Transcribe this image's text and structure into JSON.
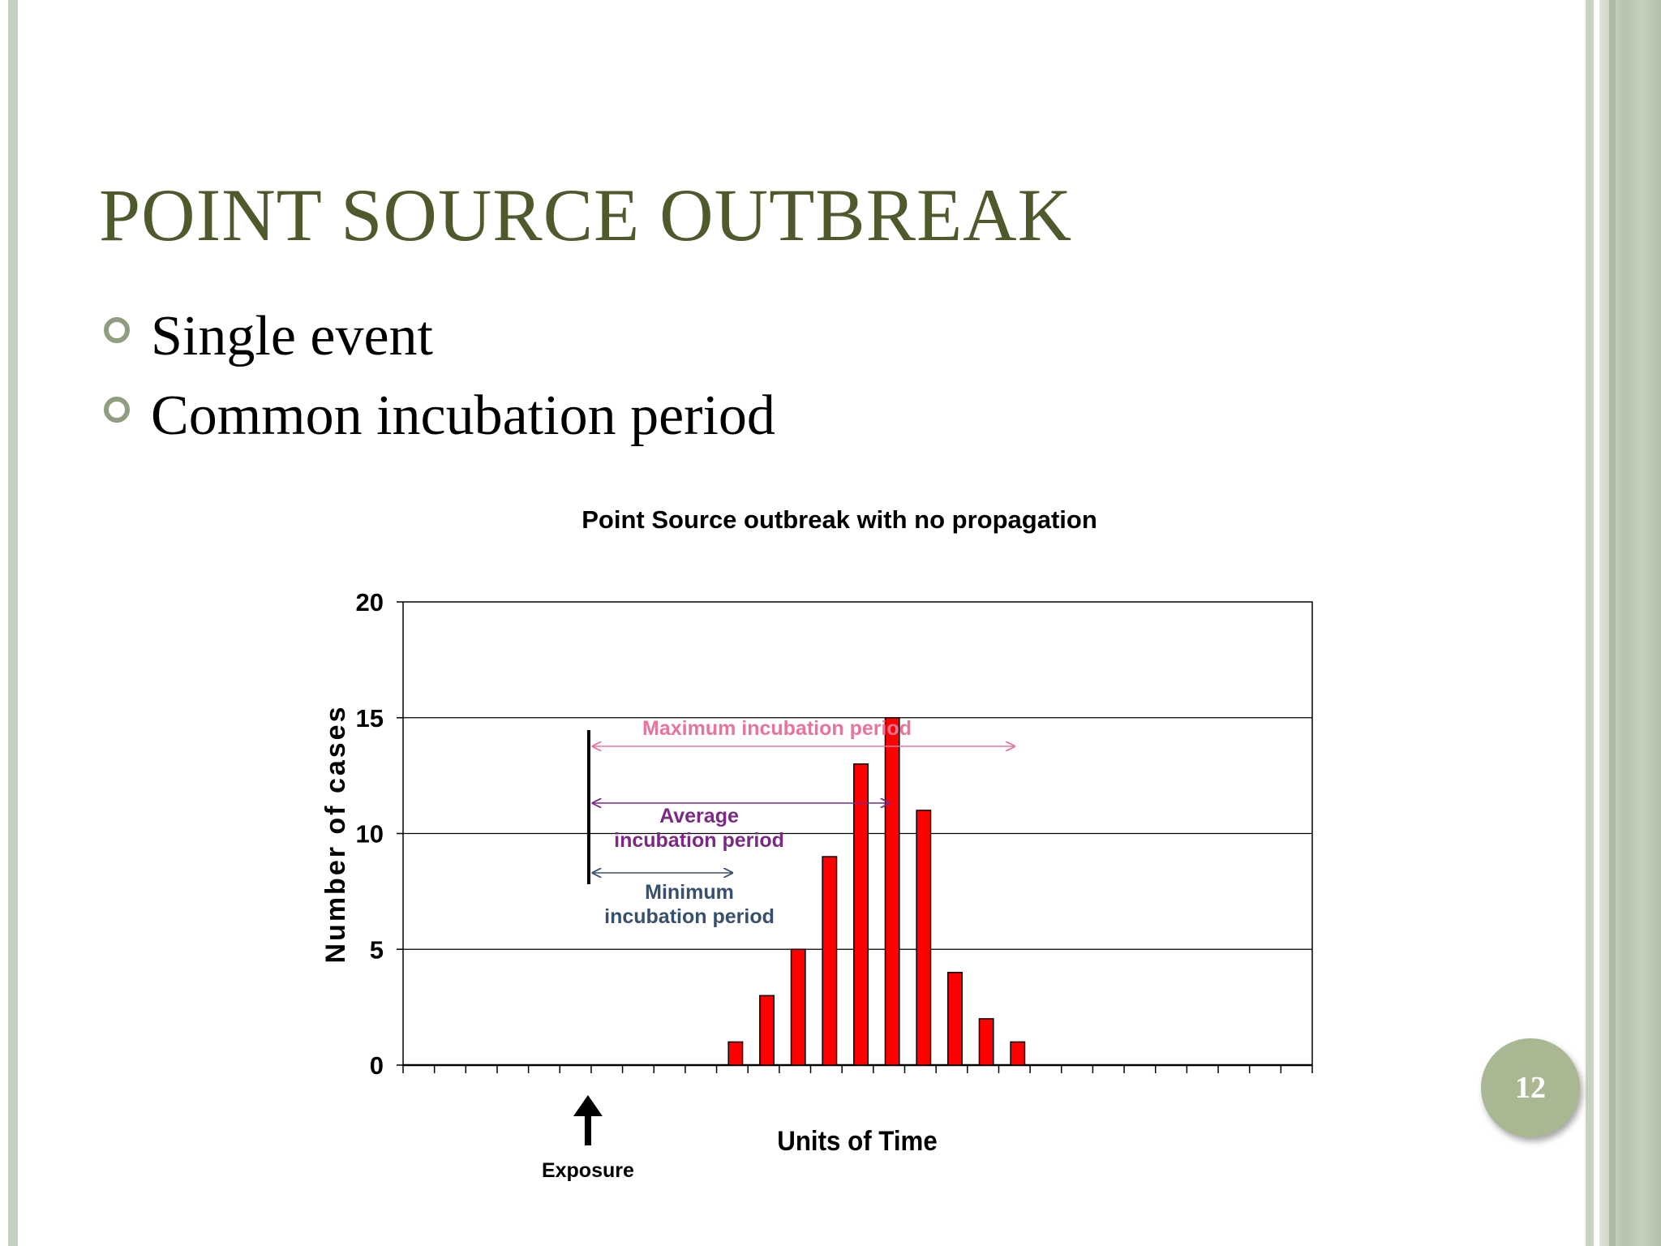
{
  "slide": {
    "title": "POINT SOURCE OUTBREAK",
    "bullets": [
      "Single event",
      "Common incubation period"
    ],
    "page_number": "12"
  },
  "chart_data": {
    "type": "bar",
    "title": "Point Source outbreak with no propagation",
    "xlabel": "Units of Time",
    "ylabel": "Number of cases",
    "ylim": [
      0,
      20
    ],
    "yticks": [
      0,
      5,
      10,
      15,
      20
    ],
    "x_time_units": 29,
    "x": [
      11,
      12,
      13,
      14,
      15,
      16,
      17,
      18,
      19,
      20
    ],
    "values": [
      1,
      3,
      5,
      9,
      13,
      15,
      11,
      4,
      2,
      1
    ],
    "bar_color": "#ff0000",
    "grid": true,
    "exposure": {
      "label": "Exposure",
      "time": 6
    },
    "annotations": [
      {
        "name": "maximum",
        "label": "Maximum incubation period",
        "from": 6,
        "to": 19.5,
        "color": "#e8749a"
      },
      {
        "name": "average",
        "label_lines": [
          "Average",
          "incubation period"
        ],
        "from": 6,
        "to": 15.5,
        "color": "#7a2a82"
      },
      {
        "name": "minimum",
        "label_lines": [
          "Minimum",
          "incubation period"
        ],
        "from": 6,
        "to": 10.5,
        "color": "#36506e"
      }
    ]
  }
}
